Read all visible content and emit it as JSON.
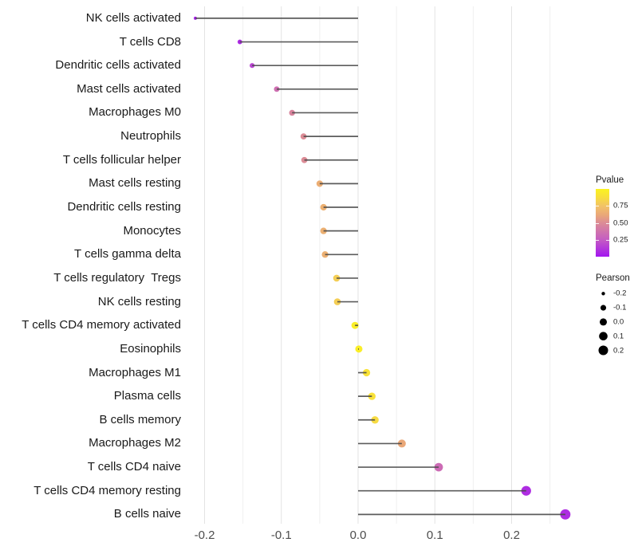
{
  "chart_data": {
    "type": "lollipop",
    "title": "",
    "xlabel": "",
    "ylabel": "",
    "xlim": [
      -0.235,
      0.292
    ],
    "x_major_ticks": [
      -0.2,
      -0.1,
      0.0,
      0.1,
      0.2
    ],
    "x_tick_labels": [
      "-0.2",
      "-0.1",
      "0.0",
      "0.1",
      "0.2"
    ],
    "x_minor_ticks": [
      -0.15,
      -0.05,
      0.05,
      0.15,
      0.25
    ],
    "grid": "vertical-only",
    "points": [
      {
        "label": "NK cells activated",
        "pearson": -0.212,
        "pvalue": 0.03
      },
      {
        "label": "T cells CD8",
        "pearson": -0.154,
        "pvalue": 0.07
      },
      {
        "label": "Dendritic cells activated",
        "pearson": -0.138,
        "pvalue": 0.17
      },
      {
        "label": "Mast cells activated",
        "pearson": -0.106,
        "pvalue": 0.35
      },
      {
        "label": "Macrophages M0",
        "pearson": -0.086,
        "pvalue": 0.46
      },
      {
        "label": "Neutrophils",
        "pearson": -0.071,
        "pvalue": 0.5
      },
      {
        "label": "T cells follicular helper",
        "pearson": -0.07,
        "pvalue": 0.5
      },
      {
        "label": "Mast cells resting",
        "pearson": -0.05,
        "pvalue": 0.65
      },
      {
        "label": "Dendritic cells resting",
        "pearson": -0.045,
        "pvalue": 0.66
      },
      {
        "label": "Monocytes",
        "pearson": -0.045,
        "pvalue": 0.66
      },
      {
        "label": "T cells gamma delta",
        "pearson": -0.043,
        "pvalue": 0.66
      },
      {
        "label": "T cells regulatory  Tregs",
        "pearson": -0.028,
        "pvalue": 0.8
      },
      {
        "label": "NK cells resting",
        "pearson": -0.027,
        "pvalue": 0.8
      },
      {
        "label": "T cells CD4 memory activated",
        "pearson": -0.004,
        "pvalue": 0.97
      },
      {
        "label": "Eosinophils",
        "pearson": 0.001,
        "pvalue": 0.97
      },
      {
        "label": "Macrophages M1",
        "pearson": 0.011,
        "pvalue": 0.9
      },
      {
        "label": "Plasma cells",
        "pearson": 0.018,
        "pvalue": 0.89
      },
      {
        "label": "B cells memory",
        "pearson": 0.022,
        "pvalue": 0.86
      },
      {
        "label": "Macrophages M2",
        "pearson": 0.057,
        "pvalue": 0.62
      },
      {
        "label": "T cells CD4 naive",
        "pearson": 0.105,
        "pvalue": 0.33
      },
      {
        "label": "T cells CD4 memory resting",
        "pearson": 0.219,
        "pvalue": 0.08
      },
      {
        "label": "B cells naive",
        "pearson": 0.27,
        "pvalue": 0.08
      }
    ],
    "legend_pvalue": {
      "title": "Pvalue",
      "tick_labels": [
        "0.75",
        "0.50",
        "0.25"
      ],
      "tick_values": [
        0.75,
        0.5,
        0.25
      ],
      "range": [
        0,
        1
      ],
      "position": "right"
    },
    "legend_pearson": {
      "title": "Pearson",
      "entries": [
        "-0.2",
        "-0.1",
        "0.0",
        "0.1",
        "0.2"
      ],
      "values": [
        -0.2,
        -0.1,
        0.0,
        0.1,
        0.2
      ],
      "key_color": "#000000",
      "position": "right"
    },
    "colors": {
      "background": "#FFFFFF",
      "stem": "#4A4A4A",
      "grid_major": "#E3E3E3",
      "grid_minor": "#EFEFEF",
      "axis_text": "#4D4D4D",
      "label_text": "#1A1A1A",
      "gradient_stops": [
        [
          0.0,
          "#A316F0"
        ],
        [
          0.25,
          "#C45CC3"
        ],
        [
          0.5,
          "#DC8C96"
        ],
        [
          0.62,
          "#EAA878"
        ],
        [
          0.75,
          "#F2C366"
        ],
        [
          0.88,
          "#F8DF3B"
        ],
        [
          1.0,
          "#FBF321"
        ]
      ]
    }
  }
}
